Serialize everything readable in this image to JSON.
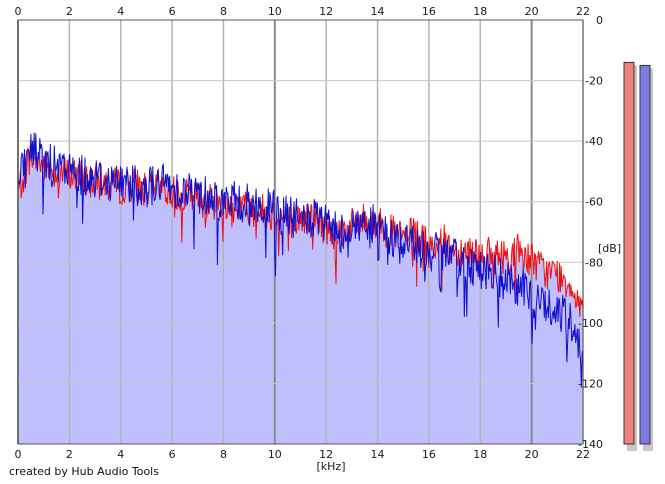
{
  "credit_text": "created by Hub Audio Tools",
  "chart_data": {
    "type": "line",
    "xlabel": "[kHz]",
    "ylabel": "[dB]",
    "xlim": [
      0,
      22
    ],
    "ylim": [
      -140,
      0
    ],
    "x_ticks": [
      0,
      2,
      4,
      6,
      8,
      10,
      12,
      14,
      16,
      18,
      20,
      22
    ],
    "y_ticks": [
      0,
      -20,
      -40,
      -60,
      -80,
      -100,
      -120,
      -140
    ],
    "grid": true,
    "series": [
      {
        "color": "#ee1111",
        "x": [
          0,
          0.5,
          1,
          1.5,
          2,
          2.5,
          3,
          3.5,
          4,
          4.5,
          5,
          5.5,
          6,
          6.5,
          7,
          7.5,
          8,
          8.5,
          9,
          9.5,
          10,
          10.5,
          11,
          11.5,
          12,
          12.5,
          13,
          13.5,
          14,
          14.5,
          15,
          15.5,
          16,
          16.5,
          17,
          17.5,
          18,
          18.5,
          19,
          19.5,
          20,
          20.5,
          21,
          21.5,
          22
        ],
        "values": [
          -57,
          -44,
          -48,
          -50,
          -51,
          -52,
          -53,
          -54,
          -55,
          -54,
          -56,
          -55,
          -57,
          -58,
          -59,
          -60,
          -61,
          -61,
          -62,
          -63,
          -64,
          -66,
          -66,
          -65,
          -69,
          -70,
          -68,
          -66,
          -67,
          -70,
          -72,
          -71,
          -75,
          -73,
          -76,
          -76,
          -77,
          -78,
          -78,
          -76,
          -79,
          -83,
          -84,
          -87,
          -95
        ]
      },
      {
        "color": "#1111cc",
        "x": [
          0,
          0.5,
          1,
          1.5,
          2,
          2.5,
          3,
          3.5,
          4,
          4.5,
          5,
          5.5,
          6,
          6.5,
          7,
          7.5,
          8,
          8.5,
          9,
          9.5,
          10,
          10.5,
          11,
          11.5,
          12,
          12.5,
          13,
          13.5,
          14,
          14.5,
          15,
          15.5,
          16,
          16.5,
          17,
          17.5,
          18,
          18.5,
          19,
          19.5,
          20,
          20.5,
          21,
          21.5,
          22
        ],
        "values": [
          -55,
          -42,
          -46,
          -49,
          -50,
          -51,
          -52,
          -53,
          -54,
          -53,
          -55,
          -54,
          -55,
          -56,
          -57,
          -58,
          -60,
          -60,
          -61,
          -62,
          -63,
          -65,
          -66,
          -66,
          -68,
          -70,
          -69,
          -67,
          -68,
          -72,
          -73,
          -74,
          -77,
          -77,
          -79,
          -80,
          -82,
          -84,
          -86,
          -88,
          -91,
          -94,
          -96,
          -100,
          -108
        ]
      }
    ],
    "meters": [
      {
        "color": "#f08080",
        "level_db": -14
      },
      {
        "color": "#7b7be0",
        "level_db": -15
      }
    ],
    "fill_color": "#c0c0ff"
  }
}
